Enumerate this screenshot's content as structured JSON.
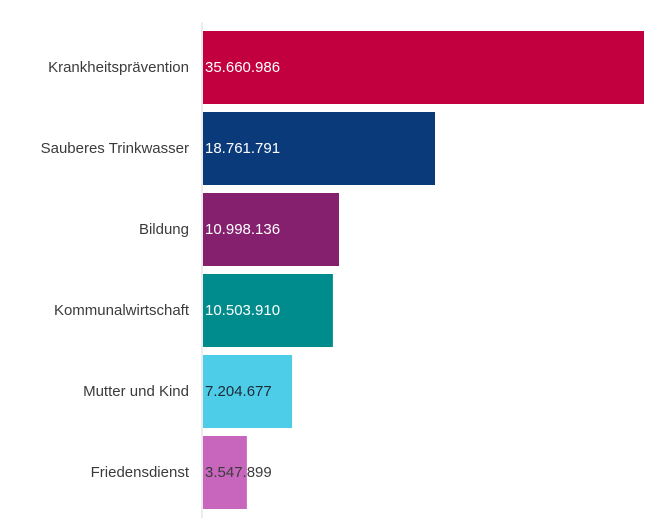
{
  "chart_data": {
    "type": "bar",
    "orientation": "horizontal",
    "categories": [
      "Krankheitsprävention",
      "Sauberes Trinkwasser",
      "Bildung",
      "Kommunalwirtschaft",
      "Mutter und Kind",
      "Friedensdienst"
    ],
    "values": [
      35660986,
      18761791,
      10998136,
      10503910,
      7204677,
      3547899
    ],
    "value_labels": [
      "35.660.986",
      "18.761.791",
      "10.998.136",
      "10.503.910",
      "7.204.677",
      "3.547.899"
    ],
    "colors": [
      "#c3003f",
      "#0b3a7a",
      "#85206f",
      "#008c8c",
      "#4dcde8",
      "#c766bc"
    ],
    "label_colors": [
      "#ffffff",
      "#ffffff",
      "#ffffff",
      "#ffffff",
      "#1f2a36",
      "#3b3b3b"
    ],
    "xlim": [
      0,
      35660986
    ],
    "grid": false,
    "legend": "none"
  }
}
